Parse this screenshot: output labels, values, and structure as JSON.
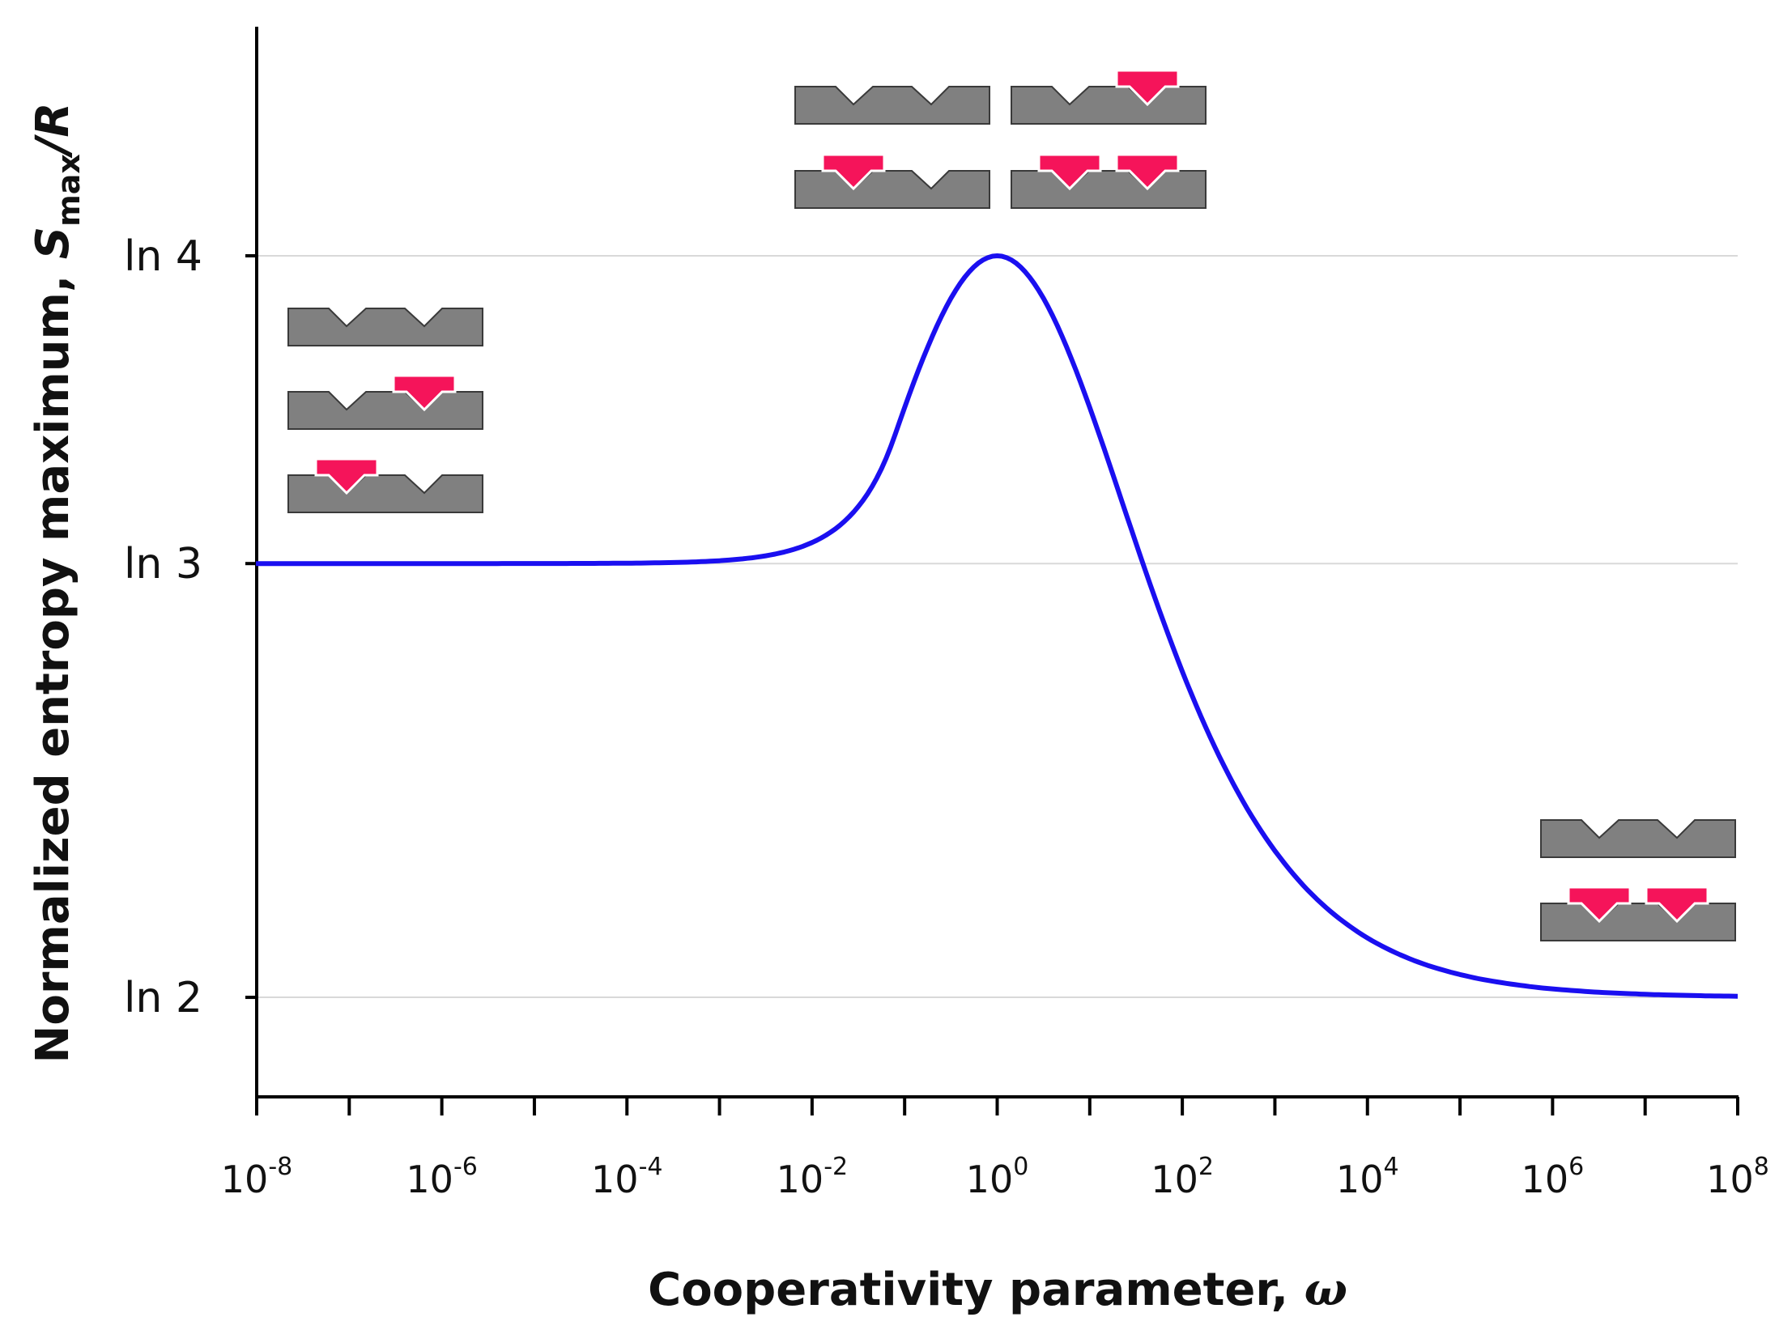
{
  "chart_data": {
    "type": "line",
    "title": "",
    "xlabel": "Cooperativity parameter, ",
    "xlabel_symbol": "ω",
    "ylabel": {
      "prefix": "Normalized entropy maximum, ",
      "symbol": "S",
      "subscript": "max",
      "suffix": "/R"
    },
    "x_scale": "log10",
    "xlim_exponent": [
      -8,
      8
    ],
    "x_ticks": [
      {
        "base": "10",
        "exp": "-8",
        "value_exponent": -8
      },
      {
        "base": "10",
        "exp": "-6",
        "value_exponent": -6
      },
      {
        "base": "10",
        "exp": "-4",
        "value_exponent": -4
      },
      {
        "base": "10",
        "exp": "-2",
        "value_exponent": -2
      },
      {
        "base": "10",
        "exp": "0",
        "value_exponent": 0
      },
      {
        "base": "10",
        "exp": "2",
        "value_exponent": 2
      },
      {
        "base": "10",
        "exp": "4",
        "value_exponent": 4
      },
      {
        "base": "10",
        "exp": "6",
        "value_exponent": 6
      },
      {
        "base": "10",
        "exp": "8",
        "value_exponent": 8
      }
    ],
    "y_ticks": [
      {
        "label": "ln 2",
        "value": 0.6931
      },
      {
        "label": "ln 3",
        "value": 1.0986
      },
      {
        "label": "ln 4",
        "value": 1.3863
      }
    ],
    "ylim": [
      0.6,
      1.6
    ],
    "grid": "horizontal",
    "series": [
      {
        "name": "S_max/R",
        "color": "#1a0ff0",
        "function": "max entropy of two-site cooperative binding (states: empty, 2 singly bound, doubly bound with weight ω)"
      }
    ],
    "annotations": [
      {
        "name": "low-omega",
        "states": [
          "empty",
          "single-right",
          "single-left"
        ]
      },
      {
        "name": "omega-one",
        "states": [
          "empty",
          "single-right",
          "single-left",
          "double"
        ]
      },
      {
        "name": "high-omega",
        "states": [
          "empty",
          "double"
        ]
      }
    ],
    "colors": {
      "curve": "#1a0ff0",
      "substrate": "#808080",
      "ligand": "#f5145a",
      "grid": "#d9d9d9",
      "axis": "#000000"
    }
  }
}
